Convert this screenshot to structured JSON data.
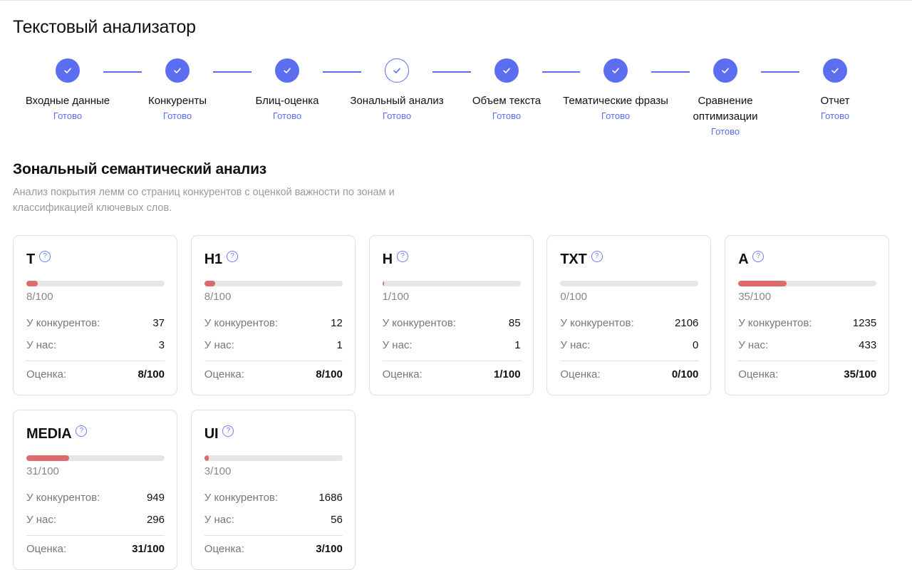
{
  "page_title": "Текстовый анализатор",
  "steps": [
    {
      "label": "Входные данные",
      "status": "Готово",
      "current": false
    },
    {
      "label": "Конкуренты",
      "status": "Готово",
      "current": false
    },
    {
      "label": "Блиц-оценка",
      "status": "Готово",
      "current": false
    },
    {
      "label": "Зональный анализ",
      "status": "Готово",
      "current": true
    },
    {
      "label": "Объем текста",
      "status": "Готово",
      "current": false
    },
    {
      "label": "Тематические фразы",
      "status": "Готово",
      "current": false
    },
    {
      "label": "Сравнение оптимизации",
      "status": "Готово",
      "current": false
    },
    {
      "label": "Отчет",
      "status": "Готово",
      "current": false
    }
  ],
  "section": {
    "title": "Зональный семантический анализ",
    "description": "Анализ покрытия лемм со страниц конкурентов с оценкой важности по зонам и классификацией ключевых слов."
  },
  "labels": {
    "competitors": "У конкурентов:",
    "ours": "У нас:",
    "score": "Оценка:",
    "help": "?"
  },
  "zones": [
    {
      "name": "T",
      "score": 8,
      "score_text": "8/100",
      "competitors": "37",
      "ours": "3"
    },
    {
      "name": "H1",
      "score": 8,
      "score_text": "8/100",
      "competitors": "12",
      "ours": "1"
    },
    {
      "name": "H",
      "score": 1,
      "score_text": "1/100",
      "competitors": "85",
      "ours": "1"
    },
    {
      "name": "TXT",
      "score": 0,
      "score_text": "0/100",
      "competitors": "2106",
      "ours": "0"
    },
    {
      "name": "A",
      "score": 35,
      "score_text": "35/100",
      "competitors": "1235",
      "ours": "433"
    },
    {
      "name": "MEDIA",
      "score": 31,
      "score_text": "31/100",
      "competitors": "949",
      "ours": "296"
    },
    {
      "name": "UI",
      "score": 3,
      "score_text": "3/100",
      "competitors": "1686",
      "ours": "56"
    }
  ],
  "colors": {
    "accent": "#5b6ef0",
    "bar_fill": "#dd6b6b",
    "bar_track": "#e6e6e6"
  }
}
